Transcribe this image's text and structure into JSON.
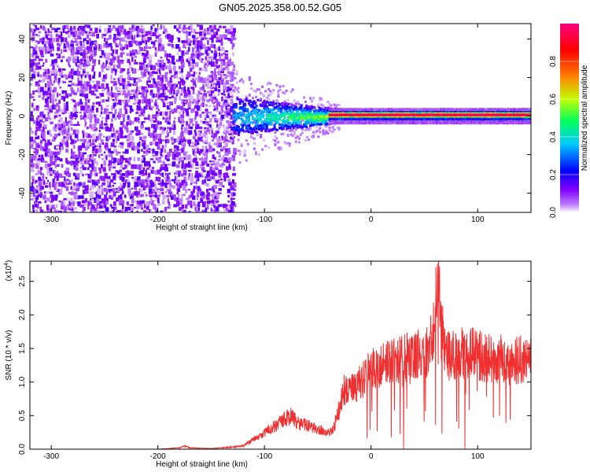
{
  "title": "GN05.2025.358.00.52.G05",
  "chart_data": [
    {
      "type": "heatmap",
      "xlabel": "Height of straight line (km)",
      "ylabel": "Frequency (Hz)",
      "xlim": [
        -320,
        150
      ],
      "ylim": [
        -50,
        48
      ],
      "xticks": [
        -300,
        -200,
        -100,
        0,
        100
      ],
      "yticks": [
        -40,
        -20,
        0,
        20,
        40
      ],
      "colorbar": {
        "label": "Normalized spectral amplitude",
        "range": [
          0,
          1
        ],
        "ticks": [
          "0.0",
          "0.2",
          "0.4",
          "0.6",
          "0.8"
        ],
        "colors": [
          "#ffffff",
          "#c080ff",
          "#8000ff",
          "#0000ff",
          "#00c8ff",
          "#00ff60",
          "#c0ff00",
          "#ff8000",
          "#ff0000",
          "#ff0080"
        ]
      },
      "regions": [
        {
          "x_range": [
            -320,
            -130
          ],
          "freq_spread_hz": [
            -50,
            48
          ],
          "amplitude": 0.1
        },
        {
          "x_range": [
            -130,
            -30
          ],
          "freq_spread_hz": [
            -10,
            10
          ],
          "amplitude": 0.3
        },
        {
          "x_range": [
            -30,
            150
          ],
          "freq_center_hz": 1,
          "freq_spread_hz": [
            -2,
            2
          ],
          "amplitude": 0.95
        }
      ]
    },
    {
      "type": "line",
      "xlabel": "Height of straight line (km)",
      "ylabel": "SNR (10 * v/v)",
      "y_multiplier": "(x10",
      "y_multiplier_exp": "4",
      "xlim": [
        -320,
        150
      ],
      "ylim": [
        0,
        2.8
      ],
      "xticks": [
        -300,
        -200,
        -100,
        0,
        100
      ],
      "yticks": [
        "0.0",
        "0.5",
        "1.0",
        "1.5",
        "2.0",
        "2.5"
      ],
      "color": "#f03030",
      "x": [
        -320,
        -300,
        -250,
        -200,
        -180,
        -175,
        -170,
        -150,
        -130,
        -120,
        -110,
        -100,
        -90,
        -80,
        -75,
        -70,
        -60,
        -50,
        -40,
        -35,
        -30,
        -25,
        -20,
        -10,
        0,
        10,
        20,
        30,
        40,
        50,
        55,
        60,
        63,
        65,
        70,
        80,
        90,
        100,
        110,
        120,
        130,
        140,
        150
      ],
      "values": [
        0.0,
        0.0,
        0.0,
        0.0,
        0.02,
        0.05,
        0.02,
        0.01,
        0.03,
        0.05,
        0.15,
        0.25,
        0.35,
        0.45,
        0.5,
        0.4,
        0.35,
        0.3,
        0.25,
        0.3,
        0.6,
        0.9,
        0.85,
        1.0,
        1.2,
        1.25,
        1.3,
        1.35,
        1.4,
        1.4,
        1.5,
        2.0,
        2.7,
        1.9,
        1.4,
        1.4,
        1.45,
        1.4,
        1.35,
        1.35,
        1.3,
        1.35,
        1.3
      ]
    }
  ]
}
